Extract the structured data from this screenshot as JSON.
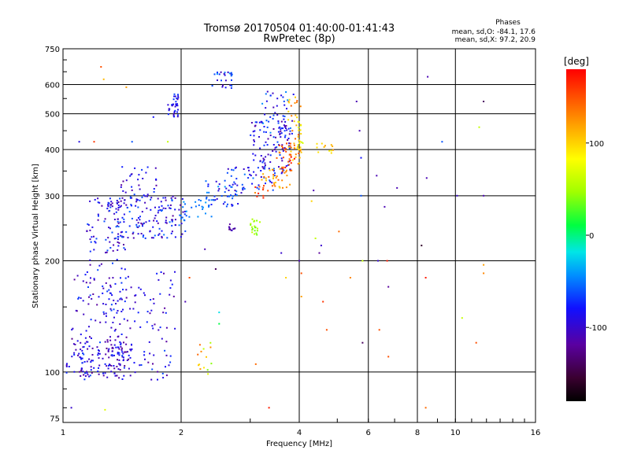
{
  "chart_data": {
    "type": "scatter",
    "title": "Tromsø 20170504 01:40:00-01:41:43",
    "subtitle": "RwPretec (8p)",
    "xlabel": "Frequency [MHz]",
    "ylabel": "Stationary phase Virtual Height [km]",
    "x_scale": "log",
    "y_scale": "log",
    "xlim": [
      1,
      16
    ],
    "ylim": [
      73,
      750
    ],
    "xticks": [
      1,
      2,
      4,
      6,
      8,
      10,
      16
    ],
    "xtick_labels": [
      "1",
      "2",
      "4",
      "6",
      "8",
      "10",
      "16"
    ],
    "yticks": [
      75,
      100,
      200,
      300,
      400,
      500,
      600,
      750
    ],
    "ytick_labels": [
      "75",
      "100",
      "200",
      "300",
      "400",
      "500",
      "600",
      "750"
    ],
    "grid": true,
    "stats": {
      "title": "Phases",
      "line1": "mean, sd,O: -84.1, 17.6",
      "line2": "mean, sd,X:  97.2, 20.9"
    },
    "colorbar": {
      "label": "[deg]",
      "range": [
        -180,
        180
      ],
      "ticks": [
        -100,
        0,
        100
      ],
      "tick_labels": [
        "-100",
        "0",
        "100"
      ]
    },
    "clusters": [
      {
        "f": [
          1.02,
          1.5
        ],
        "h": [
          97,
          125
        ],
        "phase": [
          -130,
          -70
        ],
        "n": 110
      },
      {
        "f": [
          1.1,
          1.9
        ],
        "h": [
          95,
          115
        ],
        "phase": [
          -120,
          -60
        ],
        "n": 60
      },
      {
        "f": [
          1.05,
          1.45
        ],
        "h": [
          110,
          190
        ],
        "phase": [
          -120,
          -60
        ],
        "n": 90
      },
      {
        "f": [
          1.3,
          1.95
        ],
        "h": [
          120,
          190
        ],
        "phase": [
          -120,
          -70
        ],
        "n": 70
      },
      {
        "f": [
          1.15,
          1.45
        ],
        "h": [
          190,
          300
        ],
        "phase": [
          -120,
          -60
        ],
        "n": 70
      },
      {
        "f": [
          1.3,
          2.05
        ],
        "h": [
          230,
          300
        ],
        "phase": [
          -120,
          -50
        ],
        "n": 170
      },
      {
        "f": [
          1.4,
          1.75
        ],
        "h": [
          300,
          360
        ],
        "phase": [
          -120,
          -60
        ],
        "n": 30
      },
      {
        "f": [
          1.85,
          1.98
        ],
        "h": [
          490,
          570
        ],
        "phase": [
          -110,
          -60
        ],
        "n": 35
      },
      {
        "f": [
          2.0,
          2.4
        ],
        "h": [
          255,
          295
        ],
        "phase": [
          -60,
          -40
        ],
        "n": 25
      },
      {
        "f": [
          2.3,
          2.85
        ],
        "h": [
          280,
          330
        ],
        "phase": [
          -100,
          -40
        ],
        "n": 45
      },
      {
        "f": [
          2.6,
          3.5
        ],
        "h": [
          310,
          360
        ],
        "phase": [
          -110,
          -50
        ],
        "n": 45
      },
      {
        "f": [
          3.0,
          3.8
        ],
        "h": [
          340,
          480
        ],
        "phase": [
          -120,
          -60
        ],
        "n": 110
      },
      {
        "f": [
          3.2,
          3.9
        ],
        "h": [
          430,
          580
        ],
        "phase": [
          -110,
          -40
        ],
        "n": 40
      },
      {
        "f": [
          2.4,
          2.7
        ],
        "h": [
          580,
          650
        ],
        "phase": [
          -110,
          -40
        ],
        "n": 25
      },
      {
        "f": [
          3.05,
          3.35
        ],
        "h": [
          295,
          320
        ],
        "phase": [
          120,
          180
        ],
        "n": 12
      },
      {
        "f": [
          3.2,
          3.8
        ],
        "h": [
          315,
          355
        ],
        "phase": [
          100,
          150
        ],
        "n": 30
      },
      {
        "f": [
          3.5,
          3.9
        ],
        "h": [
          345,
          420
        ],
        "phase": [
          120,
          180
        ],
        "n": 30
      },
      {
        "f": [
          3.75,
          4.05
        ],
        "h": [
          360,
          560
        ],
        "phase": [
          90,
          150
        ],
        "n": 45
      },
      {
        "f": [
          3.95,
          4.1
        ],
        "h": [
          390,
          480
        ],
        "phase": [
          60,
          110
        ],
        "n": 15
      },
      {
        "f": [
          3.0,
          3.2
        ],
        "h": [
          235,
          260
        ],
        "phase": [
          30,
          60
        ],
        "n": 20
      },
      {
        "f": [
          2.2,
          2.4
        ],
        "h": [
          97,
          120
        ],
        "phase": [
          30,
          150
        ],
        "n": 14
      },
      {
        "f": [
          2.65,
          2.75
        ],
        "h": [
          237,
          252
        ],
        "phase": [
          -140,
          -100
        ],
        "n": 10
      },
      {
        "f": [
          4.4,
          4.9
        ],
        "h": [
          390,
          420
        ],
        "phase": [
          80,
          130
        ],
        "n": 12
      }
    ],
    "points": [
      {
        "f": 1.05,
        "h": 80,
        "phase": -100
      },
      {
        "f": 1.28,
        "h": 79,
        "phase": 70
      },
      {
        "f": 1.25,
        "h": 670,
        "phase": 150
      },
      {
        "f": 1.27,
        "h": 620,
        "phase": 110
      },
      {
        "f": 1.45,
        "h": 590,
        "phase": 120
      },
      {
        "f": 1.1,
        "h": 420,
        "phase": -90
      },
      {
        "f": 1.2,
        "h": 420,
        "phase": 160
      },
      {
        "f": 1.5,
        "h": 420,
        "phase": -60
      },
      {
        "f": 1.7,
        "h": 490,
        "phase": -80
      },
      {
        "f": 1.85,
        "h": 420,
        "phase": 60
      },
      {
        "f": 2.05,
        "h": 155,
        "phase": -110
      },
      {
        "f": 2.1,
        "h": 180,
        "phase": 150
      },
      {
        "f": 2.3,
        "h": 215,
        "phase": -110
      },
      {
        "f": 2.45,
        "h": 190,
        "phase": -140
      },
      {
        "f": 2.5,
        "h": 145,
        "phase": -20
      },
      {
        "f": 2.5,
        "h": 135,
        "phase": 10
      },
      {
        "f": 3.1,
        "h": 105,
        "phase": 140
      },
      {
        "f": 3.35,
        "h": 80,
        "phase": 170
      },
      {
        "f": 3.6,
        "h": 210,
        "phase": -100
      },
      {
        "f": 3.7,
        "h": 180,
        "phase": 100
      },
      {
        "f": 4.05,
        "h": 185,
        "phase": 150
      },
      {
        "f": 4.05,
        "h": 160,
        "phase": 120
      },
      {
        "f": 4.0,
        "h": 200,
        "phase": -110
      },
      {
        "f": 4.3,
        "h": 290,
        "phase": 100
      },
      {
        "f": 4.35,
        "h": 310,
        "phase": -110
      },
      {
        "f": 4.4,
        "h": 230,
        "phase": 60
      },
      {
        "f": 4.5,
        "h": 210,
        "phase": -120
      },
      {
        "f": 4.55,
        "h": 220,
        "phase": -100
      },
      {
        "f": 4.6,
        "h": 155,
        "phase": 160
      },
      {
        "f": 4.7,
        "h": 130,
        "phase": 150
      },
      {
        "f": 5.05,
        "h": 240,
        "phase": 140
      },
      {
        "f": 5.4,
        "h": 180,
        "phase": 130
      },
      {
        "f": 5.6,
        "h": 540,
        "phase": -110
      },
      {
        "f": 5.7,
        "h": 450,
        "phase": -110
      },
      {
        "f": 5.75,
        "h": 380,
        "phase": -80
      },
      {
        "f": 5.75,
        "h": 300,
        "phase": -60
      },
      {
        "f": 5.8,
        "h": 120,
        "phase": -140
      },
      {
        "f": 5.8,
        "h": 200,
        "phase": 60
      },
      {
        "f": 6.3,
        "h": 340,
        "phase": -110
      },
      {
        "f": 6.35,
        "h": 200,
        "phase": -100
      },
      {
        "f": 6.4,
        "h": 130,
        "phase": 150
      },
      {
        "f": 6.6,
        "h": 280,
        "phase": -110
      },
      {
        "f": 6.7,
        "h": 200,
        "phase": 170
      },
      {
        "f": 6.75,
        "h": 170,
        "phase": -120
      },
      {
        "f": 6.75,
        "h": 110,
        "phase": 150
      },
      {
        "f": 7.1,
        "h": 315,
        "phase": -110
      },
      {
        "f": 8.2,
        "h": 220,
        "phase": -160
      },
      {
        "f": 8.4,
        "h": 180,
        "phase": 170
      },
      {
        "f": 8.4,
        "h": 80,
        "phase": 140
      },
      {
        "f": 8.5,
        "h": 630,
        "phase": -110
      },
      {
        "f": 8.45,
        "h": 335,
        "phase": -110
      },
      {
        "f": 9.25,
        "h": 420,
        "phase": -60
      },
      {
        "f": 10.1,
        "h": 300,
        "phase": -100
      },
      {
        "f": 10.4,
        "h": 140,
        "phase": 60
      },
      {
        "f": 11.3,
        "h": 120,
        "phase": 150
      },
      {
        "f": 11.5,
        "h": 460,
        "phase": 60
      },
      {
        "f": 11.8,
        "h": 540,
        "phase": -140
      },
      {
        "f": 11.8,
        "h": 300,
        "phase": -110
      },
      {
        "f": 11.8,
        "h": 185,
        "phase": 130
      },
      {
        "f": 11.8,
        "h": 195,
        "phase": 120
      }
    ]
  }
}
